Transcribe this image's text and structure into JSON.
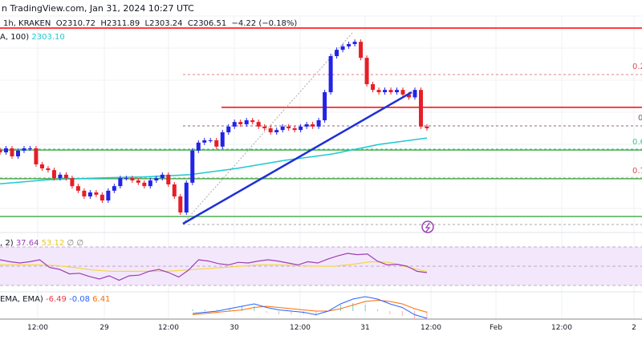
{
  "header": {
    "source": "n TradingView.com, Jan 31, 2024 10:27 UTC",
    "symbol": "1h, KRAKEN",
    "open": "O2310.72",
    "high": "H2311.89",
    "low": "L2303.24",
    "close": "C2306.51",
    "change": "−4.22 (−0.18%)",
    "ema_label": "A, 100)",
    "ema_value": "2303.10"
  },
  "rsi": {
    "label": ", 2)",
    "value1": "37.64",
    "value2": "53.12",
    "value3": "∅",
    "value4": "∅"
  },
  "macd": {
    "label": "EMA, EMA)",
    "value1": "-6.49",
    "value2": "-0.08",
    "value3": "6.41"
  },
  "fib_labels": [
    "0.2",
    "0",
    "0.6",
    "0.7"
  ],
  "colors": {
    "up": "#2323e6",
    "down": "#e61e28",
    "ema": "#1ec8d2",
    "rsi": "#9c3fb5",
    "rsi_ma": "#f5d742",
    "green": "#4caf50",
    "red": "#ff0000"
  },
  "chart_data": {
    "type": "candlestick",
    "x_ticks": [
      "12:00",
      "29",
      "12:00",
      "30",
      "12:00",
      "31",
      "12:00",
      "Feb",
      "12:00",
      "2"
    ],
    "closes": [
      2298.1,
      2299.5,
      2296.7,
      2298.7,
      2299.5,
      2299.5,
      2293.9,
      2292.5,
      2291.9,
      2289.1,
      2290.3,
      2289.1,
      2286.3,
      2284.7,
      2282.7,
      2284.1,
      2283.3,
      2281.3,
      2284.7,
      2286.3,
      2289.1,
      2289.1,
      2288.3,
      2287.5,
      2286.3,
      2288.3,
      2289.1,
      2290.3,
      2286.9,
      2282.7,
      2277.1,
      2287.5,
      2298.7,
      2301.5,
      2302.3,
      2302.3,
      2300.1,
      2305.1,
      2307.1,
      2308.7,
      2307.9,
      2309.3,
      2308.7,
      2307.1,
      2306.5,
      2305.1,
      2305.9,
      2307.1,
      2306.5,
      2305.9,
      2307.1,
      2307.9,
      2307.1,
      2309.3,
      2319.1,
      2331.7,
      2333.9,
      2335.1,
      2335.9,
      2336.7,
      2331.1,
      2321.9,
      2319.9,
      2319.1,
      2319.9,
      2319.1,
      2319.9,
      2318.3,
      2317.3,
      2319.9,
      2307.1,
      2306.5
    ],
    "ema_100": [
      2287.1,
      2288.5,
      2289.1,
      2289.5,
      2290.3,
      2292.5,
      2295.3,
      2297.5,
      2300.9,
      2303.1
    ],
    "levels": {
      "resistance_top": 2341.5,
      "resistance": 2313.8,
      "support_1": 2298.9,
      "support_2": 2288.9,
      "support_3": 2275.7
    },
    "rsi_values": [
      60,
      57,
      55,
      57,
      60,
      48,
      45,
      38,
      39,
      34,
      30,
      35,
      28,
      35,
      36,
      42,
      45,
      40,
      33,
      44,
      60,
      58,
      54,
      52,
      56,
      55,
      58,
      60,
      58,
      55,
      52,
      57,
      55,
      61,
      66,
      70,
      68,
      69,
      58,
      52,
      53,
      50,
      42,
      40
    ],
    "rsi_ma_values": [
      52,
      52,
      52,
      51,
      48,
      44,
      42,
      42,
      42,
      42,
      44,
      46,
      48,
      50,
      52,
      52,
      51,
      50,
      50,
      53,
      57,
      56,
      48,
      42
    ],
    "macd_values": [
      -2,
      -1,
      0,
      2,
      4,
      6,
      3,
      1,
      0,
      -1,
      -3,
      0,
      6,
      10,
      12,
      10,
      6,
      3,
      -3,
      -6
    ],
    "signal_values": [
      -3,
      -2,
      -1,
      0,
      1,
      3,
      4,
      3,
      2,
      1,
      0,
      0,
      2,
      5,
      8,
      9,
      8,
      6,
      2,
      -1
    ]
  }
}
